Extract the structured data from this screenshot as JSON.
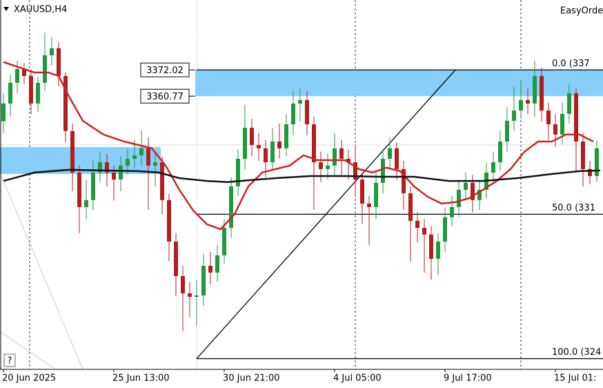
{
  "chart_data": {
    "type": "candlestick",
    "title": "XAUUSD,H4",
    "corner_label": "EasyOrde",
    "ylim": [
      3243.6,
      3402
    ],
    "xlim": [
      -0.5,
      86.9
    ],
    "xticks": [
      {
        "value": 0,
        "label": "20 Jun 2025"
      },
      {
        "value": 16,
        "label": "25 Jun 13:00"
      },
      {
        "value": 32,
        "label": "30 Jun 21:00"
      },
      {
        "value": 48,
        "label": "4 Jul 05:00"
      },
      {
        "value": 64,
        "label": "9 Jul 17:00"
      },
      {
        "value": 80,
        "label": "15 Jul 01:"
      }
    ],
    "up_color": "#1e9a3c",
    "down_color": "#b51c1c",
    "candles": [
      [
        3350.0,
        3362,
        3345,
        3357.6
      ],
      [
        3357.6,
        3370,
        3352,
        3366.5
      ],
      [
        3366.5,
        3376,
        3362,
        3372.4
      ],
      [
        3372.4,
        3375,
        3366,
        3369.4
      ],
      [
        3369.4,
        3372,
        3353,
        3357.6
      ],
      [
        3357.6,
        3369,
        3354,
        3366.5
      ],
      [
        3366.5,
        3388,
        3363,
        3378.3
      ],
      [
        3378.3,
        3386,
        3374,
        3381.3
      ],
      [
        3381.3,
        3384,
        3365,
        3369.4
      ],
      [
        3369.4,
        3371,
        3341,
        3345.8
      ],
      [
        3345.8,
        3349,
        3320,
        3328.0
      ],
      [
        3328.0,
        3331,
        3302,
        3313.2
      ],
      [
        3313.2,
        3325,
        3308,
        3316.2
      ],
      [
        3316.2,
        3333,
        3312,
        3328.0
      ],
      [
        3328.0,
        3337,
        3324,
        3332.4
      ],
      [
        3332.4,
        3336,
        3322,
        3328.0
      ],
      [
        3328.0,
        3331,
        3316,
        3325.0
      ],
      [
        3325.0,
        3335,
        3320,
        3331.0
      ],
      [
        3331.0,
        3338,
        3327,
        3333.9
      ],
      [
        3333.9,
        3342,
        3330,
        3335.4
      ],
      [
        3335.4,
        3346,
        3331,
        3338.4
      ],
      [
        3338.4,
        3343,
        3312,
        3331.0
      ],
      [
        3331.0,
        3337,
        3322,
        3332.4
      ],
      [
        3332.4,
        3335,
        3310,
        3316.2
      ],
      [
        3316.2,
        3319,
        3290,
        3298.4
      ],
      [
        3298.4,
        3302,
        3275,
        3283.6
      ],
      [
        3283.6,
        3288,
        3260,
        3276.2
      ],
      [
        3276.2,
        3281,
        3266,
        3274.7
      ],
      [
        3274.7,
        3282,
        3262,
        3275.3
      ],
      [
        3275.3,
        3293,
        3271,
        3288.0
      ],
      [
        3288.0,
        3294,
        3280,
        3285.1
      ],
      [
        3285.1,
        3297,
        3281,
        3292.5
      ],
      [
        3292.5,
        3308,
        3289,
        3304.3
      ],
      [
        3304.3,
        3326,
        3300,
        3322.1
      ],
      [
        3322.1,
        3338,
        3318,
        3333.9
      ],
      [
        3333.9,
        3357,
        3329,
        3347.2
      ],
      [
        3347.2,
        3351,
        3335,
        3339.8
      ],
      [
        3339.8,
        3345,
        3333,
        3338.4
      ],
      [
        3338.4,
        3342,
        3326,
        3332.4
      ],
      [
        3332.4,
        3347,
        3329,
        3341.3
      ],
      [
        3341.3,
        3349,
        3334,
        3338.4
      ],
      [
        3338.4,
        3353,
        3335,
        3348.7
      ],
      [
        3348.7,
        3363,
        3344,
        3357.6
      ],
      [
        3357.6,
        3364,
        3350,
        3359.1
      ],
      [
        3359.1,
        3363,
        3344,
        3348.7
      ],
      [
        3348.7,
        3352,
        3312,
        3332.4
      ],
      [
        3332.4,
        3337,
        3324,
        3329.5
      ],
      [
        3329.5,
        3336,
        3325,
        3331.0
      ],
      [
        3331.0,
        3345,
        3327,
        3338.4
      ],
      [
        3338.4,
        3342,
        3327,
        3333.9
      ],
      [
        3333.9,
        3338,
        3325,
        3332.4
      ],
      [
        3332.4,
        3340,
        3318,
        3325.0
      ],
      [
        3325.0,
        3328,
        3306,
        3314.7
      ],
      [
        3314.7,
        3318,
        3297,
        3313.2
      ],
      [
        3313.2,
        3328,
        3308,
        3323.6
      ],
      [
        3323.6,
        3338,
        3319,
        3333.9
      ],
      [
        3333.9,
        3343,
        3330,
        3338.4
      ],
      [
        3338.4,
        3341,
        3325,
        3329.5
      ],
      [
        3329.5,
        3333,
        3312,
        3319.1
      ],
      [
        3319.1,
        3322,
        3290,
        3307.3
      ],
      [
        3307.3,
        3311,
        3298,
        3304.3
      ],
      [
        3304.3,
        3308,
        3285,
        3301.4
      ],
      [
        3301.4,
        3305,
        3282,
        3291.0
      ],
      [
        3291.0,
        3302,
        3284,
        3298.4
      ],
      [
        3298.4,
        3313,
        3294,
        3308.8
      ],
      [
        3308.8,
        3318,
        3305,
        3313.2
      ],
      [
        3313.2,
        3325,
        3309,
        3320.6
      ],
      [
        3320.6,
        3328,
        3316,
        3323.6
      ],
      [
        3323.6,
        3327,
        3311,
        3316.2
      ],
      [
        3316.2,
        3325,
        3312,
        3320.6
      ],
      [
        3320.6,
        3332,
        3317,
        3328.0
      ],
      [
        3328.0,
        3337,
        3324,
        3332.4
      ],
      [
        3332.4,
        3346,
        3329,
        3341.3
      ],
      [
        3341.3,
        3356,
        3337,
        3350.2
      ],
      [
        3350.2,
        3365,
        3346,
        3354.6
      ],
      [
        3354.6,
        3368,
        3351,
        3359.1
      ],
      [
        3359.1,
        3364,
        3353,
        3357.6
      ],
      [
        3357.6,
        3376,
        3352,
        3369.4
      ],
      [
        3369.4,
        3373,
        3350,
        3354.6
      ],
      [
        3354.6,
        3358,
        3342,
        3348.7
      ],
      [
        3348.7,
        3353,
        3339,
        3344.3
      ],
      [
        3344.3,
        3358,
        3340,
        3353.2
      ],
      [
        3353.2,
        3366,
        3349,
        3362.0
      ],
      [
        3362.0,
        3364,
        3328,
        3341.3
      ],
      [
        3341.3,
        3345,
        3322,
        3329.5
      ],
      [
        3329.5,
        3333,
        3323,
        3326.5
      ],
      [
        3326.5,
        3342,
        3324,
        3338.4
      ]
    ],
    "lines": [
      {
        "color": "#d42020",
        "x": [
          0,
          1.5,
          4.5,
          6.5,
          8,
          9.5,
          11.5,
          14.5,
          17.5,
          21.5,
          23.5,
          25.5,
          27.5,
          29.5,
          31.5,
          33.5,
          35.5,
          37.5,
          41.5,
          43.5,
          45.5,
          49.5,
          51.5,
          53.5,
          55.5,
          57.5,
          59.5,
          61.5,
          63.5,
          65.5,
          67.5,
          69.5,
          71.5,
          73.5,
          75.5,
          77.5,
          79.5,
          81.5,
          83.5,
          85.5
        ],
        "values": [
          3375.4,
          3373.9,
          3370.9,
          3370.9,
          3369.4,
          3360.6,
          3350.2,
          3344.3,
          3341.3,
          3338.4,
          3331.0,
          3320.6,
          3311.7,
          3305.8,
          3303.7,
          3310.2,
          3322.1,
          3328.0,
          3331.0,
          3335.4,
          3333.3,
          3333.3,
          3329.5,
          3328.0,
          3330.1,
          3328.6,
          3322.1,
          3317.6,
          3314.7,
          3315.3,
          3317.0,
          3320.6,
          3324.4,
          3329.5,
          3336.9,
          3341.3,
          3341.3,
          3344.3,
          3344.3,
          3341.3
        ]
      },
      {
        "color": "#111111",
        "x": [
          0,
          4.5,
          9.5,
          14.5,
          19.5,
          22.5,
          25.5,
          29.5,
          32.5,
          35.5,
          39.5,
          44.5,
          49.5,
          54.5,
          59.5,
          64.5,
          69.5,
          74.5,
          79.5,
          83.5,
          86.5
        ],
        "values": [
          3324.4,
          3328.0,
          3329.2,
          3328.9,
          3328.6,
          3328.0,
          3325.6,
          3324.4,
          3323.9,
          3324.7,
          3325.6,
          3326.5,
          3326.5,
          3326.2,
          3326.2,
          3324.4,
          3324.4,
          3325.6,
          3327.4,
          3328.6,
          3328.9
        ]
      }
    ],
    "zones": [
      {
        "top": 3372.02,
        "bottom": 3360.77,
        "from": 27.8,
        "color": "#87cefa"
      },
      {
        "top": 3338.9,
        "bottom": 3327.4,
        "from": -0.5,
        "to": 22.8,
        "color": "#87cefa"
      }
    ],
    "fib_levels": [
      {
        "value": 3372.02,
        "label": "0.0 (337"
      },
      {
        "value": 3310.1,
        "label": "50.0 (331"
      },
      {
        "value": 3248.2,
        "label": "100.0 (324"
      }
    ],
    "fib_from": 28,
    "trend": {
      "x": [
        28,
        65.5
      ],
      "values": [
        3248.2,
        3372.02
      ]
    },
    "help": "?"
  }
}
